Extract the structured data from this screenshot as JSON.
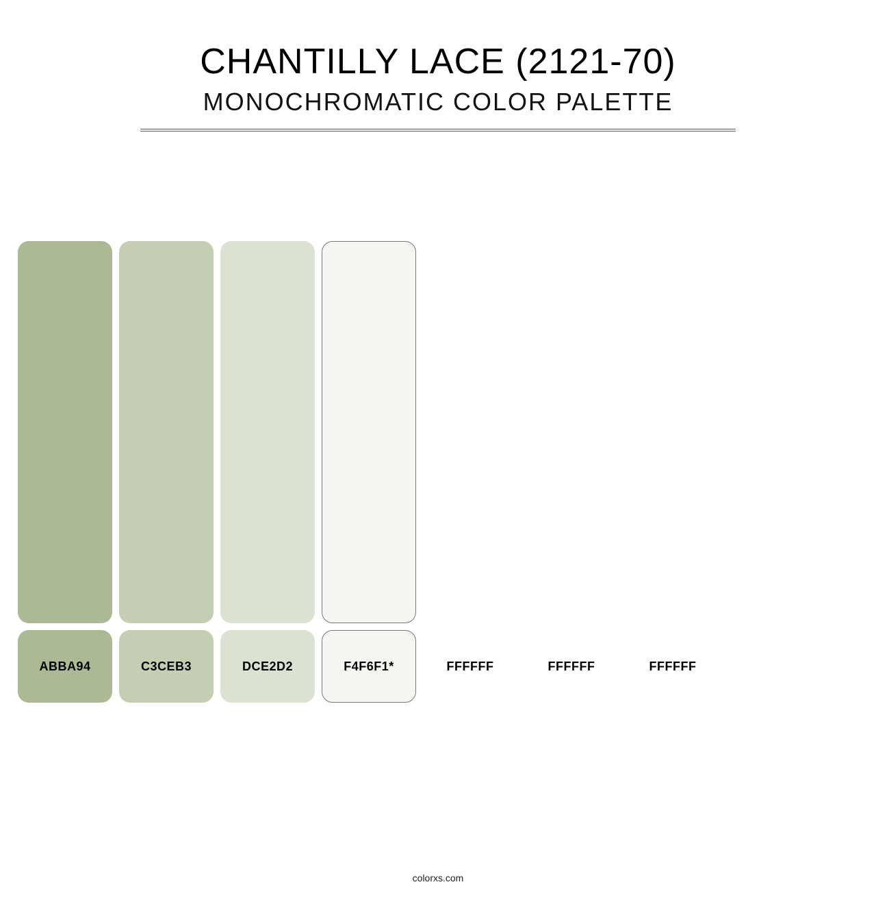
{
  "header": {
    "title": "CHANTILLY LACE (2121-70)",
    "subtitle": "MONOCHROMATIC COLOR PALETTE"
  },
  "palette": {
    "swatch_border_color": "#777777",
    "border_radius": 16,
    "tall_height": 558,
    "short_height": 106,
    "swatch_width": 138,
    "gap": 10,
    "swatches": [
      {
        "hex": "#ABBA94",
        "label": "ABBA94",
        "bordered": false
      },
      {
        "hex": "#C3CEB3",
        "label": "C3CEB3",
        "bordered": false
      },
      {
        "hex": "#DCE2D2",
        "label": "DCE2D2",
        "bordered": false
      },
      {
        "hex": "#F4F6F1",
        "label": "F4F6F1*",
        "bordered": true
      },
      {
        "hex": "#FFFFFF",
        "label": "FFFFFF",
        "bordered": false
      },
      {
        "hex": "#FFFFFF",
        "label": "FFFFFF",
        "bordered": false
      },
      {
        "hex": "#FFFFFF",
        "label": "FFFFFF",
        "bordered": false
      }
    ]
  },
  "footer": {
    "text": "colorxs.com"
  },
  "typography": {
    "title_fontsize": 52,
    "subtitle_fontsize": 36,
    "label_fontsize": 18,
    "label_fontweight": 700,
    "text_color": "#000000"
  },
  "background_color": "#ffffff"
}
